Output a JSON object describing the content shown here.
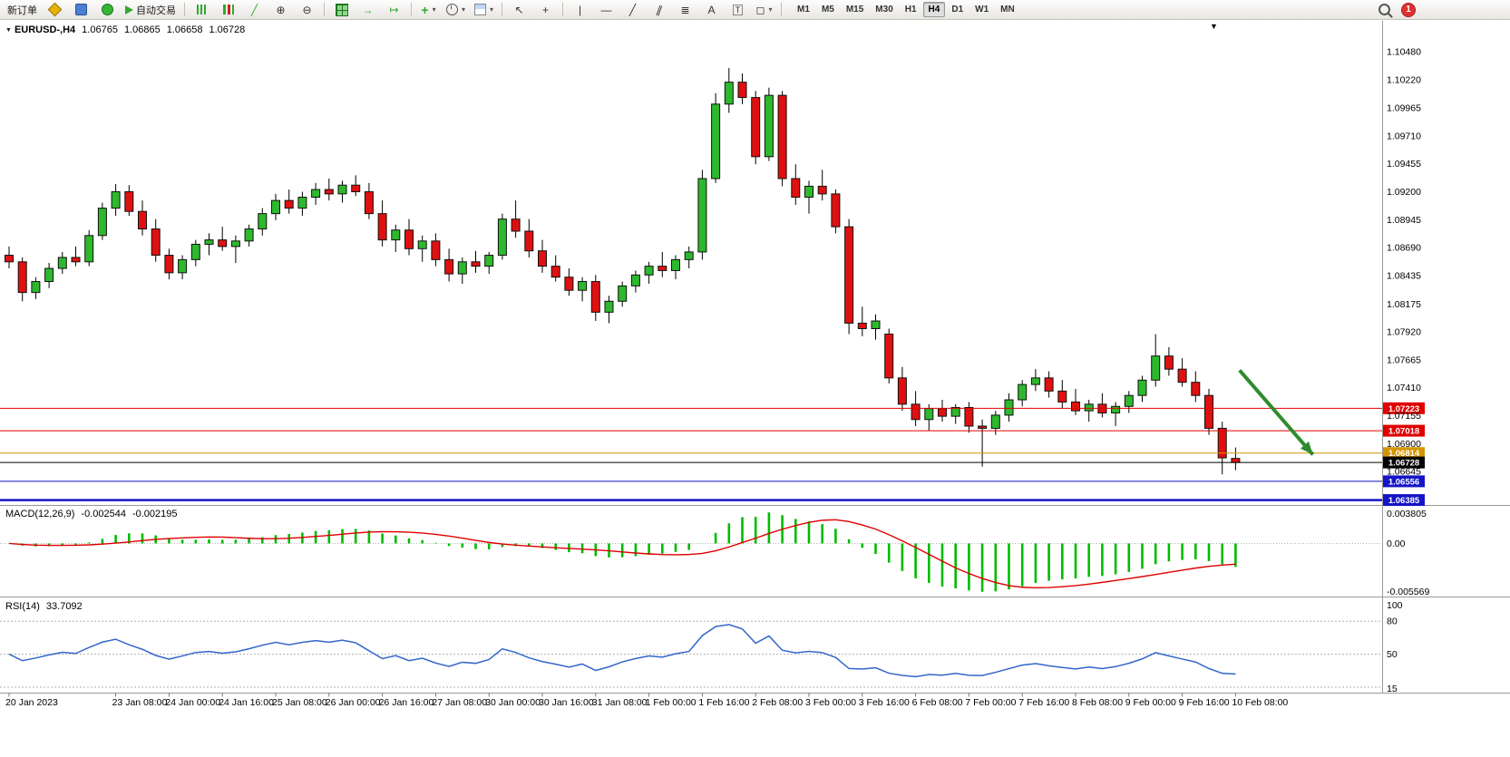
{
  "toolbar": {
    "new_order_label": "新订单",
    "autotrading_label": "自动交易",
    "timeframes": [
      "M1",
      "M5",
      "M15",
      "M30",
      "H1",
      "H4",
      "D1",
      "W1",
      "MN"
    ],
    "active_timeframe": "H4",
    "notification_count": "1"
  },
  "chart_header": {
    "symbol_period": "EURUSD-,H4",
    "open": "1.06765",
    "high": "1.06865",
    "low": "1.06658",
    "close": "1.06728"
  },
  "indicators": {
    "macd_name": "MACD(12,26,9)",
    "macd_value_main": "-0.002544",
    "macd_value_signal": "-0.002195",
    "rsi_name": "RSI(14)",
    "rsi_value": "33.7092"
  },
  "chart_data": {
    "type": "candlestick",
    "symbol": "EURUSD-",
    "period": "H4",
    "price_range": {
      "min": 1.0634,
      "max": 1.1076
    },
    "colors": {
      "up": "#2db82d",
      "down": "#e01010",
      "wick": "#000000",
      "macd_hist": "#00bb00",
      "macd_signal": "#e00000",
      "rsi_line": "#3366cc"
    },
    "price_axis": [
      "1.10480",
      "1.10220",
      "1.09965",
      "1.09710",
      "1.09455",
      "1.09200",
      "1.08945",
      "1.08690",
      "1.08435",
      "1.08175",
      "1.07920",
      "1.07665",
      "1.07410",
      "1.07155",
      "1.06900",
      "1.06645"
    ],
    "price_lines": [
      {
        "price": 1.07223,
        "label": "1.07223",
        "color": "#e00000",
        "width": 1
      },
      {
        "price": 1.07018,
        "label": "1.07018",
        "color": "#e00000",
        "width": 1
      },
      {
        "price": 1.06814,
        "label": "1.06814",
        "color": "#d49600",
        "width": 1
      },
      {
        "price": 1.06728,
        "label": "1.06728",
        "color": "#000000",
        "width": 1
      },
      {
        "price": 1.06556,
        "label": "1.06556",
        "color": "#1414c8",
        "width": 1
      },
      {
        "price": 1.06385,
        "label": "1.06385",
        "color": "#1414c8",
        "width": 2.5
      }
    ],
    "time_labels": [
      {
        "bar": 0,
        "label": "20 Jan 2023"
      },
      {
        "bar": 8,
        "label": "23 Jan 08:00"
      },
      {
        "bar": 12,
        "label": "24 Jan 00:00"
      },
      {
        "bar": 16,
        "label": "24 Jan 16:00"
      },
      {
        "bar": 20,
        "label": "25 Jan 08:00"
      },
      {
        "bar": 24,
        "label": "26 Jan 00:00"
      },
      {
        "bar": 28,
        "label": "26 Jan 16:00"
      },
      {
        "bar": 32,
        "label": "27 Jan 08:00"
      },
      {
        "bar": 36,
        "label": "30 Jan 00:00"
      },
      {
        "bar": 40,
        "label": "30 Jan 16:00"
      },
      {
        "bar": 44,
        "label": "31 Jan 08:00"
      },
      {
        "bar": 48,
        "label": "1 Feb 00:00"
      },
      {
        "bar": 52,
        "label": "1 Feb 16:00"
      },
      {
        "bar": 56,
        "label": "2 Feb 08:00"
      },
      {
        "bar": 60,
        "label": "3 Feb 00:00"
      },
      {
        "bar": 64,
        "label": "3 Feb 16:00"
      },
      {
        "bar": 68,
        "label": "6 Feb 08:00"
      },
      {
        "bar": 72,
        "label": "7 Feb 00:00"
      },
      {
        "bar": 76,
        "label": "7 Feb 16:00"
      },
      {
        "bar": 80,
        "label": "8 Feb 08:00"
      },
      {
        "bar": 84,
        "label": "9 Feb 00:00"
      },
      {
        "bar": 88,
        "label": "9 Feb 16:00"
      },
      {
        "bar": 92,
        "label": "10 Feb 08:00"
      }
    ],
    "candles": [
      [
        1.0862,
        1.087,
        1.085,
        1.0856
      ],
      [
        1.0856,
        1.086,
        1.082,
        1.0828
      ],
      [
        1.0828,
        1.0842,
        1.0822,
        1.0838
      ],
      [
        1.0838,
        1.0855,
        1.0832,
        1.085
      ],
      [
        1.085,
        1.0865,
        1.0845,
        1.086
      ],
      [
        1.086,
        1.087,
        1.0852,
        1.0856
      ],
      [
        1.0856,
        1.0885,
        1.0852,
        1.088
      ],
      [
        1.088,
        1.091,
        1.0876,
        1.0905
      ],
      [
        1.0905,
        1.0927,
        1.0898,
        1.092
      ],
      [
        1.092,
        1.0926,
        1.0898,
        1.0902
      ],
      [
        1.0902,
        1.0912,
        1.088,
        1.0886
      ],
      [
        1.0886,
        1.0895,
        1.0856,
        1.0862
      ],
      [
        1.0862,
        1.0868,
        1.084,
        1.0846
      ],
      [
        1.0846,
        1.0862,
        1.084,
        1.0858
      ],
      [
        1.0858,
        1.0876,
        1.0852,
        1.0872
      ],
      [
        1.0872,
        1.0882,
        1.0862,
        1.0876
      ],
      [
        1.0876,
        1.0888,
        1.0866,
        1.087
      ],
      [
        1.087,
        1.088,
        1.0855,
        1.0875
      ],
      [
        1.0875,
        1.089,
        1.087,
        1.0886
      ],
      [
        1.0886,
        1.0905,
        1.088,
        1.09
      ],
      [
        1.09,
        1.0918,
        1.0894,
        1.0912
      ],
      [
        1.0912,
        1.0922,
        1.09,
        1.0905
      ],
      [
        1.0905,
        1.092,
        1.0898,
        1.0915
      ],
      [
        1.0915,
        1.0928,
        1.0908,
        1.0922
      ],
      [
        1.0922,
        1.0932,
        1.0912,
        1.0918
      ],
      [
        1.0918,
        1.093,
        1.091,
        1.0926
      ],
      [
        1.0926,
        1.0935,
        1.0916,
        1.092
      ],
      [
        1.092,
        1.0928,
        1.0895,
        1.09
      ],
      [
        1.09,
        1.0912,
        1.087,
        1.0876
      ],
      [
        1.0876,
        1.089,
        1.0865,
        1.0885
      ],
      [
        1.0885,
        1.0895,
        1.0862,
        1.0868
      ],
      [
        1.0868,
        1.088,
        1.0856,
        1.0875
      ],
      [
        1.0875,
        1.0882,
        1.0852,
        1.0858
      ],
      [
        1.0858,
        1.0868,
        1.0838,
        1.0845
      ],
      [
        1.0845,
        1.086,
        1.0836,
        1.0856
      ],
      [
        1.0856,
        1.0866,
        1.0846,
        1.0852
      ],
      [
        1.0852,
        1.0865,
        1.0845,
        1.0862
      ],
      [
        1.0862,
        1.09,
        1.0858,
        1.0895
      ],
      [
        1.0895,
        1.0912,
        1.0878,
        1.0884
      ],
      [
        1.0884,
        1.0895,
        1.086,
        1.0866
      ],
      [
        1.0866,
        1.0876,
        1.0846,
        1.0852
      ],
      [
        1.0852,
        1.0862,
        1.0838,
        1.0842
      ],
      [
        1.0842,
        1.085,
        1.0825,
        1.083
      ],
      [
        1.083,
        1.0842,
        1.082,
        1.0838
      ],
      [
        1.0838,
        1.0844,
        1.0802,
        1.081
      ],
      [
        1.081,
        1.0825,
        1.08,
        1.082
      ],
      [
        1.082,
        1.0838,
        1.0815,
        1.0834
      ],
      [
        1.0834,
        1.0848,
        1.0828,
        1.0844
      ],
      [
        1.0844,
        1.0856,
        1.0836,
        1.0852
      ],
      [
        1.0852,
        1.0865,
        1.0842,
        1.0848
      ],
      [
        1.0848,
        1.0862,
        1.084,
        1.0858
      ],
      [
        1.0858,
        1.087,
        1.085,
        1.0865
      ],
      [
        1.0865,
        1.094,
        1.0858,
        1.0932
      ],
      [
        1.0932,
        1.101,
        1.0928,
        1.1
      ],
      [
        1.1,
        1.1033,
        1.0992,
        1.102
      ],
      [
        1.102,
        1.1028,
        1.1,
        1.1006
      ],
      [
        1.1006,
        1.1012,
        1.0945,
        1.0952
      ],
      [
        1.0952,
        1.1015,
        1.0948,
        1.1008
      ],
      [
        1.1008,
        1.1012,
        1.0925,
        1.0932
      ],
      [
        1.0932,
        1.0945,
        1.0908,
        1.0915
      ],
      [
        1.0915,
        1.093,
        1.09,
        1.0925
      ],
      [
        1.0925,
        1.094,
        1.0912,
        1.0918
      ],
      [
        1.0918,
        1.0922,
        1.0882,
        1.0888
      ],
      [
        1.0888,
        1.0895,
        1.079,
        1.08
      ],
      [
        1.08,
        1.0815,
        1.0788,
        1.0795
      ],
      [
        1.0795,
        1.0808,
        1.0785,
        1.0802
      ],
      [
        1.079,
        1.0795,
        1.0745,
        1.075
      ],
      [
        1.075,
        1.076,
        1.072,
        1.0726
      ],
      [
        1.0726,
        1.0738,
        1.0706,
        1.0712
      ],
      [
        1.0712,
        1.0726,
        1.0702,
        1.0722
      ],
      [
        1.0722,
        1.073,
        1.071,
        1.0715
      ],
      [
        1.0715,
        1.0726,
        1.0708,
        1.0723
      ],
      [
        1.0723,
        1.0728,
        1.07,
        1.0706
      ],
      [
        1.0706,
        1.0712,
        1.0669,
        1.0704
      ],
      [
        1.0704,
        1.072,
        1.0698,
        1.0716
      ],
      [
        1.0716,
        1.0736,
        1.071,
        1.073
      ],
      [
        1.073,
        1.0748,
        1.0724,
        1.0744
      ],
      [
        1.0744,
        1.0758,
        1.0738,
        1.075
      ],
      [
        1.075,
        1.0756,
        1.0732,
        1.0738
      ],
      [
        1.0738,
        1.0748,
        1.0722,
        1.0728
      ],
      [
        1.0728,
        1.074,
        1.0716,
        1.072
      ],
      [
        1.072,
        1.073,
        1.071,
        1.0726
      ],
      [
        1.0726,
        1.0736,
        1.0714,
        1.0718
      ],
      [
        1.0718,
        1.0728,
        1.0706,
        1.0724
      ],
      [
        1.0724,
        1.0738,
        1.0718,
        1.0734
      ],
      [
        1.0734,
        1.0752,
        1.0728,
        1.0748
      ],
      [
        1.0748,
        1.079,
        1.0742,
        1.077
      ],
      [
        1.077,
        1.0778,
        1.0752,
        1.0758
      ],
      [
        1.0758,
        1.0768,
        1.0742,
        1.0746
      ],
      [
        1.0746,
        1.0756,
        1.0728,
        1.0734
      ],
      [
        1.0734,
        1.074,
        1.0698,
        1.0704
      ],
      [
        1.0704,
        1.071,
        1.0662,
        1.0677
      ],
      [
        1.06765,
        1.06865,
        1.06658,
        1.06728
      ]
    ],
    "macd": {
      "axis_labels": [
        "0.003805",
        "0.00",
        "-0.005569"
      ]
    },
    "rsi": {
      "axis_labels": [
        "100",
        "80",
        "50",
        "15"
      ],
      "levels": [
        80,
        50,
        20
      ]
    },
    "arrow": {
      "from_bar": 92.3,
      "from_price": 1.0757,
      "to_bar": 97.8,
      "to_price": 1.068,
      "color": "#2e8b2e",
      "width": 4
    }
  }
}
